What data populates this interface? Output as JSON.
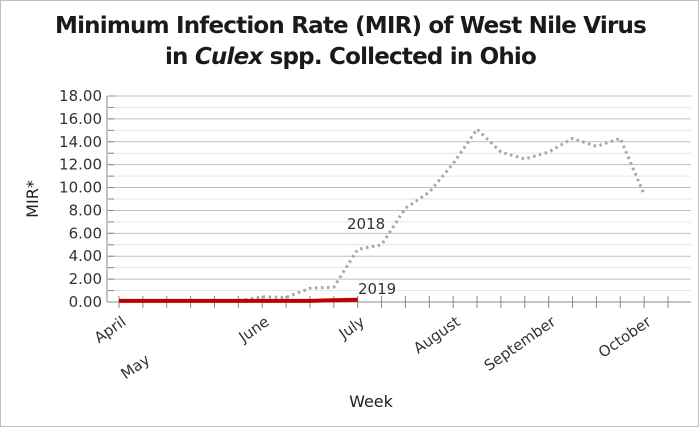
{
  "chart_data": {
    "type": "line",
    "title_line1": "Minimum Infection Rate (MIR) of West Nile Virus",
    "title_line2_pre": "in ",
    "title_line2_italic": "Culex",
    "title_line2_post": " spp. Collected in Ohio",
    "xlabel": "Week",
    "ylabel": "MIR*",
    "ylim": [
      0,
      18
    ],
    "ytick_labels": [
      "0.00",
      "2.00",
      "4.00",
      "6.00",
      "8.00",
      "10.00",
      "12.00",
      "14.00",
      "16.00",
      "18.00"
    ],
    "categories": [
      "April",
      "May",
      "",
      "",
      "",
      "",
      "June",
      "",
      "",
      "",
      "July",
      "",
      "",
      "",
      "August",
      "",
      "",
      "",
      "September",
      "",
      "",
      "",
      "October",
      ""
    ],
    "grid": true,
    "series": [
      {
        "name": "2018",
        "color": "#a6a6a6",
        "style": "dotted",
        "values": [
          0.1,
          0.1,
          0.1,
          0.1,
          0.1,
          0.1,
          0.45,
          0.4,
          1.2,
          1.3,
          4.6,
          5.0,
          8.2,
          9.6,
          12.1,
          15.1,
          13.1,
          12.5,
          13.1,
          14.3,
          13.6,
          14.3,
          9.4,
          null
        ]
      },
      {
        "name": "2019",
        "color": "#c00000",
        "style": "solid",
        "values": [
          0.1,
          0.1,
          0.1,
          0.1,
          0.1,
          0.1,
          0.1,
          0.1,
          0.1,
          0.15,
          0.2,
          null,
          null,
          null,
          null,
          null,
          null,
          null,
          null,
          null,
          null,
          null,
          null,
          null
        ]
      }
    ]
  }
}
